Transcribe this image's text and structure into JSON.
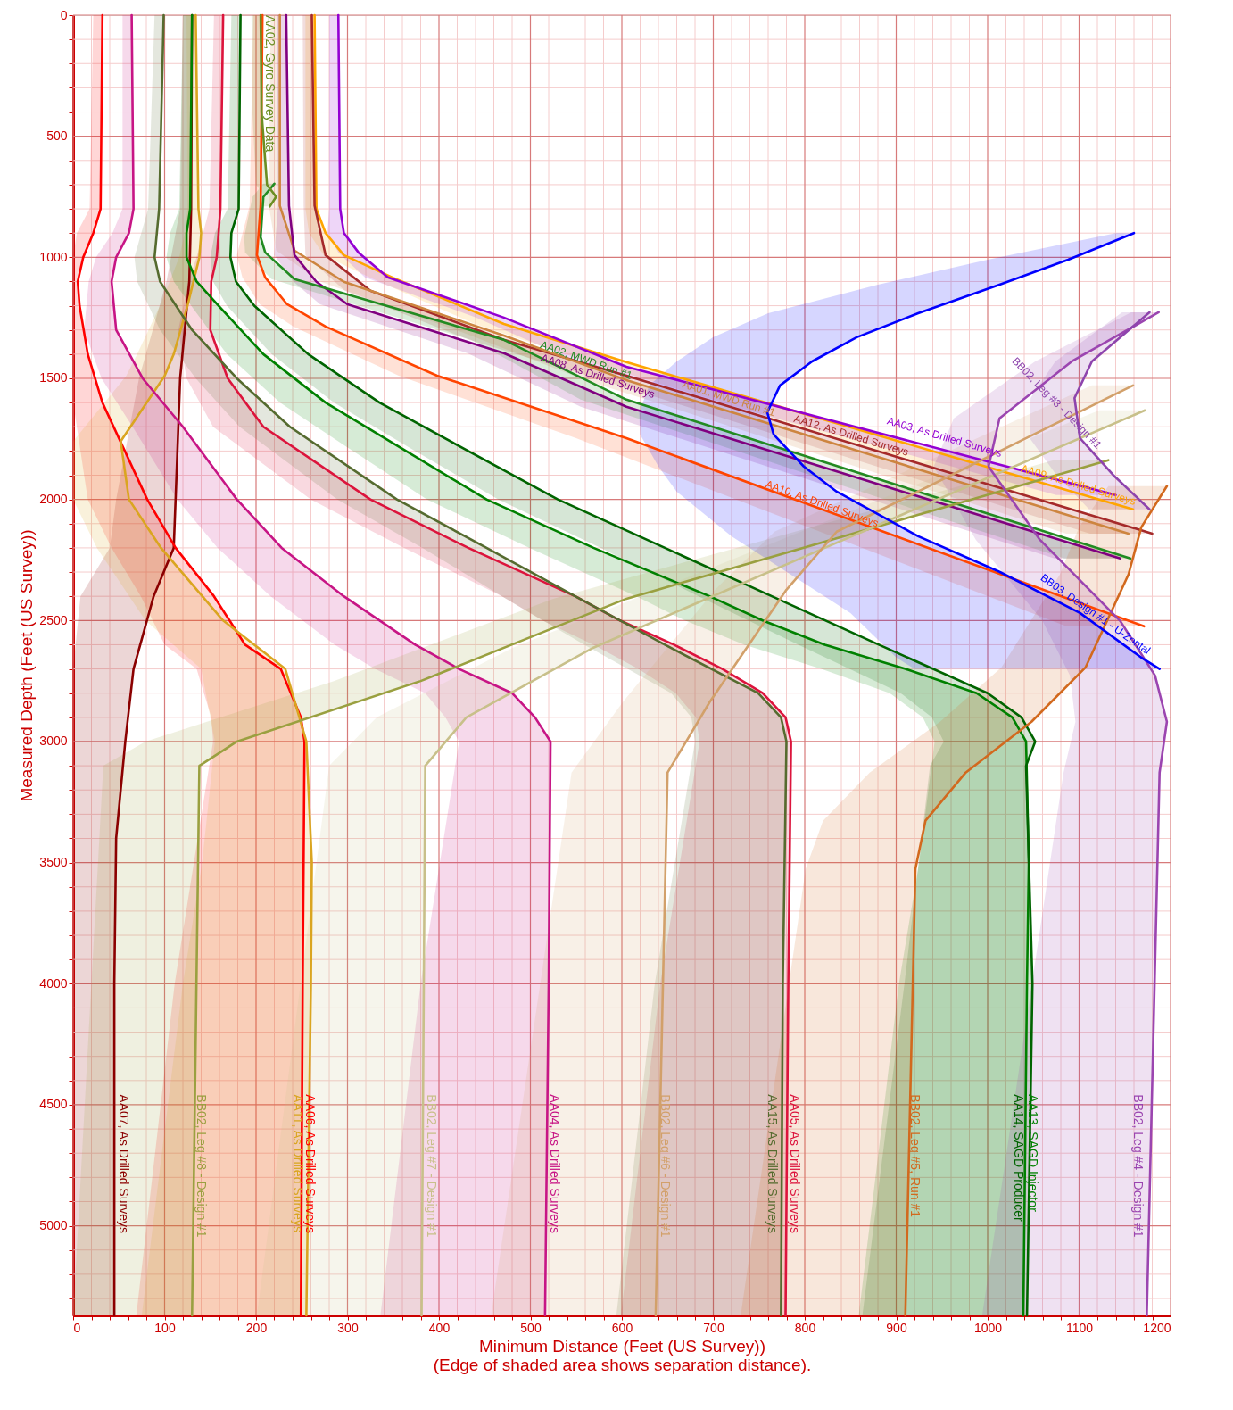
{
  "chart_data": {
    "type": "line",
    "orientation": "horizontal",
    "xlabel": "Minimum Distance (Feet (US Survey))",
    "ylabel": "Measured Depth (Feet (US Survey))",
    "annotations": [
      "(Edge of shaded area shows separation distance)."
    ],
    "xlim": [
      0,
      1200
    ],
    "ylim": [
      5370,
      0
    ],
    "xticks": [
      0,
      {
        "value": 20,
        "label": null
      },
      {
        "value": 40,
        "label": null
      },
      {
        "value": 60,
        "label": null
      },
      {
        "value": 80,
        "label": null
      },
      100,
      {
        "value": 120,
        "label": null
      },
      {
        "value": 140,
        "label": null
      },
      {
        "value": 160,
        "label": null
      },
      {
        "value": 180,
        "label": null
      },
      200,
      {
        "value": 220,
        "label": null
      },
      {
        "value": 240,
        "label": null
      },
      {
        "value": 260,
        "label": null
      },
      {
        "value": 280,
        "label": null
      },
      300,
      {
        "value": 320,
        "label": null
      },
      {
        "value": 340,
        "label": null
      },
      {
        "value": 360,
        "label": null
      },
      {
        "value": 380,
        "label": null
      },
      400,
      {
        "value": 420,
        "label": null
      },
      {
        "value": 440,
        "label": null
      },
      {
        "value": 460,
        "label": null
      },
      {
        "value": 480,
        "label": null
      },
      500,
      {
        "value": 520,
        "label": null
      },
      {
        "value": 540,
        "label": null
      },
      {
        "value": 560,
        "label": null
      },
      {
        "value": 580,
        "label": null
      },
      600,
      {
        "value": 620,
        "label": null
      },
      {
        "value": 640,
        "label": null
      },
      {
        "value": 660,
        "label": null
      },
      {
        "value": 680,
        "label": null
      },
      700,
      {
        "value": 720,
        "label": null
      },
      {
        "value": 740,
        "label": null
      },
      {
        "value": 760,
        "label": null
      },
      {
        "value": 780,
        "label": null
      },
      800,
      {
        "value": 820,
        "label": null
      },
      {
        "value": 840,
        "label": null
      },
      {
        "value": 860,
        "label": null
      },
      {
        "value": 880,
        "label": null
      },
      900,
      {
        "value": 920,
        "label": null
      },
      {
        "value": 940,
        "label": null
      },
      {
        "value": 960,
        "label": null
      },
      {
        "value": 980,
        "label": null
      },
      1000,
      {
        "value": 1020,
        "label": null
      },
      {
        "value": 1040,
        "label": null
      },
      {
        "value": 1060,
        "label": null
      },
      {
        "value": 1080,
        "label": null
      },
      1100,
      {
        "value": 1120,
        "label": null
      },
      {
        "value": 1140,
        "label": null
      },
      {
        "value": 1160,
        "label": null
      },
      {
        "value": 1180,
        "label": null
      },
      1200
    ],
    "yticks": [
      0,
      {
        "value": 100,
        "label": null
      },
      {
        "value": 200,
        "label": null
      },
      {
        "value": 300,
        "label": null
      },
      {
        "value": 400,
        "label": null
      },
      500,
      {
        "value": 600,
        "label": null
      },
      {
        "value": 700,
        "label": null
      },
      {
        "value": 800,
        "label": null
      },
      {
        "value": 900,
        "label": null
      },
      1000,
      {
        "value": 1100,
        "label": null
      },
      {
        "value": 1200,
        "label": null
      },
      {
        "value": 1300,
        "label": null
      },
      {
        "value": 1400,
        "label": null
      },
      1500,
      {
        "value": 1600,
        "label": null
      },
      {
        "value": 1700,
        "label": null
      },
      {
        "value": 1800,
        "label": null
      },
      {
        "value": 1900,
        "label": null
      },
      2000,
      {
        "value": 2100,
        "label": null
      },
      {
        "value": 2200,
        "label": null
      },
      {
        "value": 2300,
        "label": null
      },
      {
        "value": 2400,
        "label": null
      },
      2500,
      {
        "value": 2600,
        "label": null
      },
      {
        "value": 2700,
        "label": null
      },
      {
        "value": 2800,
        "label": null
      },
      {
        "value": 2900,
        "label": null
      },
      3000,
      {
        "value": 3100,
        "label": null
      },
      {
        "value": 3200,
        "label": null
      },
      {
        "value": 3300,
        "label": null
      },
      {
        "value": 3400,
        "label": null
      },
      3500,
      {
        "value": 3600,
        "label": null
      },
      {
        "value": 3700,
        "label": null
      },
      {
        "value": 3800,
        "label": null
      },
      {
        "value": 3900,
        "label": null
      },
      4000,
      {
        "value": 4100,
        "label": null
      },
      {
        "value": 4200,
        "label": null
      },
      {
        "value": 4300,
        "label": null
      },
      {
        "value": 4400,
        "label": null
      },
      4500,
      {
        "value": 4600,
        "label": null
      },
      {
        "value": 4700,
        "label": null
      },
      {
        "value": 4800,
        "label": null
      },
      {
        "value": 4900,
        "label": null
      },
      5000,
      {
        "value": 5100,
        "label": null
      },
      {
        "value": 5200,
        "label": null
      },
      {
        "value": 5300,
        "label": null
      }
    ],
    "grid": true,
    "legend": false,
    "marker": "none",
    "line_style": "solid",
    "series": [
      {
        "name": "AA07, As Drilled Surveys",
        "color": "#8b0000",
        "x": [
          0,
          800,
          1100,
          1500,
          2000,
          2200,
          2400,
          2700,
          3000,
          3400,
          4000,
          5370
        ],
        "values": [
          130,
          129,
          127,
          117,
          112,
          110,
          88,
          66,
          57,
          47,
          45,
          45
        ],
        "lower": [
          120,
          117,
          102,
          72,
          47,
          40,
          8,
          0,
          0,
          0,
          0,
          0
        ],
        "upper": [
          130,
          129,
          127,
          117,
          112,
          110,
          88,
          66,
          57,
          47,
          45,
          45
        ]
      },
      {
        "name": "AA06, As Drilled Surveys",
        "color": "#ff0000",
        "x": [
          0,
          800,
          900,
          1000,
          1100,
          1200,
          1400,
          1600,
          2000,
          2200,
          2400,
          2600,
          2700,
          2900,
          3000,
          4000,
          5370
        ],
        "values": [
          32,
          30,
          22,
          11,
          5,
          7,
          16,
          32,
          81,
          112,
          154,
          188,
          227,
          249,
          253,
          251,
          249
        ],
        "lower": [
          22,
          18,
          4,
          0,
          0,
          0,
          0,
          0,
          16,
          42,
          74,
          100,
          135,
          151,
          153,
          111,
          69
        ],
        "upper": [
          32,
          30,
          22,
          11,
          5,
          7,
          16,
          32,
          81,
          112,
          154,
          188,
          227,
          249,
          253,
          251,
          249
        ]
      },
      {
        "name": "AA11, As Drilled Surveys",
        "color": "#daa520",
        "x": [
          0,
          800,
          900,
          1000,
          1200,
          1400,
          1490,
          1760,
          2000,
          2200,
          2500,
          2700,
          3000,
          3500,
          4000,
          5370
        ],
        "values": [
          134,
          137,
          140,
          138,
          125,
          110,
          100,
          52,
          61,
          96,
          164,
          232,
          255,
          261,
          260,
          255
        ],
        "lower": [
          124,
          125,
          122,
          116,
          95,
          70,
          58,
          0,
          0,
          26,
          79,
          140,
          155,
          141,
          120,
          75
        ],
        "upper": [
          134,
          137,
          140,
          138,
          125,
          110,
          100,
          52,
          61,
          96,
          164,
          232,
          255,
          261,
          260,
          255
        ]
      },
      {
        "name": "AA04, As Drilled Surveys",
        "color": "#c71585",
        "x": [
          0,
          800,
          900,
          1000,
          1100,
          1300,
          1500,
          1700,
          2000,
          2200,
          2400,
          2600,
          2700,
          2800,
          2900,
          3000,
          4000,
          5370
        ],
        "values": [
          64,
          66,
          61,
          47,
          42,
          47,
          76,
          120,
          179,
          228,
          296,
          374,
          422,
          480,
          505,
          522,
          520,
          516
        ],
        "lower": [
          54,
          54,
          43,
          25,
          17,
          12,
          31,
          65,
          114,
          158,
          216,
          286,
          330,
          385,
          407,
          422,
          380,
          336
        ],
        "upper": [
          64,
          66,
          61,
          47,
          42,
          47,
          76,
          120,
          179,
          228,
          296,
          374,
          422,
          480,
          505,
          522,
          520,
          516
        ]
      },
      {
        "name": "AA05, As Drilled Surveys",
        "color": "#dc143c",
        "x": [
          0,
          800,
          1000,
          1100,
          1300,
          1500,
          1700,
          2000,
          2200,
          2400,
          2500,
          2600,
          2700,
          2800,
          2900,
          3000,
          4000,
          5370
        ],
        "values": [
          164,
          161,
          157,
          151,
          150,
          169,
          208,
          325,
          432,
          549,
          598,
          657,
          710,
          754,
          779,
          785,
          782,
          779
        ],
        "lower": [
          154,
          149,
          135,
          126,
          115,
          124,
          153,
          260,
          362,
          469,
          513,
          569,
          618,
          659,
          681,
          685,
          642,
          599
        ],
        "upper": [
          164,
          161,
          157,
          151,
          150,
          169,
          208,
          325,
          432,
          549,
          598,
          657,
          710,
          754,
          779,
          785,
          782,
          779
        ]
      },
      {
        "name": "AA15, As Drilled Surveys",
        "color": "#556b2f",
        "x": [
          0,
          800,
          1000,
          1100,
          1300,
          1500,
          1700,
          2000,
          2200,
          2400,
          2600,
          2800,
          2900,
          3000,
          4000,
          5370
        ],
        "values": [
          99,
          94,
          89,
          95,
          130,
          179,
          237,
          354,
          452,
          549,
          647,
          749,
          774,
          780,
          776,
          774
        ],
        "lower": [
          89,
          82,
          67,
          70,
          95,
          134,
          182,
          289,
          382,
          469,
          559,
          654,
          676,
          680,
          636,
          594
        ],
        "upper": [
          99,
          94,
          89,
          95,
          130,
          179,
          237,
          354,
          452,
          549,
          647,
          749,
          774,
          780,
          776,
          774
        ]
      },
      {
        "name": "AA13, SAGD Injector",
        "color": "#008000",
        "x": [
          0,
          800,
          900,
          1000,
          1100,
          1200,
          1400,
          1600,
          1800,
          2000,
          2200,
          2400,
          2500,
          2600,
          2700,
          2800,
          2900,
          3000,
          3500,
          4000,
          5370
        ],
        "values": [
          130,
          128,
          124,
          124,
          135,
          159,
          208,
          276,
          364,
          452,
          569,
          696,
          754,
          822,
          910,
          988,
          1027,
          1042,
          1045,
          1043,
          1039
        ],
        "lower": [
          120,
          116,
          106,
          102,
          110,
          129,
          168,
          226,
          306,
          387,
          499,
          616,
          669,
          734,
          818,
          893,
          929,
          942,
          925,
          903,
          859
        ],
        "upper": [
          130,
          128,
          124,
          124,
          135,
          159,
          208,
          276,
          364,
          452,
          569,
          696,
          754,
          822,
          910,
          988,
          1027,
          1042,
          1045,
          1043,
          1039
        ]
      },
      {
        "name": "AA14, SAGD Producer",
        "color": "#006400",
        "x": [
          0,
          800,
          900,
          1000,
          1100,
          1200,
          1400,
          1600,
          1800,
          2000,
          2200,
          2400,
          2600,
          2800,
          2900,
          3000,
          3100,
          4000,
          5370
        ],
        "values": [
          183,
          181,
          173,
          172,
          178,
          198,
          257,
          335,
          432,
          530,
          647,
          764,
          881,
          1000,
          1037,
          1052,
          1042,
          1049,
          1043
        ],
        "lower": [
          173,
          169,
          155,
          150,
          153,
          168,
          217,
          285,
          374,
          465,
          577,
          684,
          793,
          905,
          939,
          952,
          937,
          909,
          863
        ],
        "upper": [
          183,
          181,
          173,
          172,
          178,
          198,
          257,
          335,
          432,
          530,
          647,
          764,
          881,
          1000,
          1037,
          1052,
          1042,
          1049,
          1043
        ]
      },
      {
        "name": "AA09, As Drilled Surveys",
        "color": "#ffa500",
        "x": [
          0,
          800,
          900,
          991,
          1083,
          1275,
          1433,
          2041
        ],
        "values": [
          264,
          266,
          276,
          296,
          349,
          471,
          605,
          1159
        ],
        "lower": [
          254,
          254,
          258,
          274,
          324,
          439,
          565,
          1093
        ],
        "upper": [
          264,
          266,
          276,
          296,
          349,
          471,
          605,
          1159
        ]
      },
      {
        "name": "AA03, As Drilled Surveys",
        "color": "#9400d3",
        "x": [
          0,
          800,
          899,
          980,
          1083,
          1249,
          1452,
          1982
        ],
        "values": [
          290,
          292,
          296,
          312,
          344,
          471,
          605,
          1140
        ],
        "lower": [
          280,
          280,
          278,
          290,
          319,
          441,
          563,
          1075
        ],
        "upper": [
          290,
          292,
          296,
          312,
          344,
          471,
          605,
          1140
        ]
      },
      {
        "name": "AA12, As Drilled Surveys",
        "color": "#a52a2a",
        "x": [
          0,
          787,
          991,
          1138,
          1341,
          1489,
          2141
        ],
        "values": [
          261,
          264,
          276,
          325,
          471,
          605,
          1180
        ],
        "lower": [
          251,
          252,
          254,
          297,
          433,
          563,
          1112
        ],
        "upper": [
          261,
          264,
          276,
          325,
          471,
          605,
          1180
        ]
      },
      {
        "name": "AA01, MWD Run #1",
        "color": "#cd853f",
        "x": [
          0,
          787,
          972,
          1101,
          1323,
          1507,
          2141
        ],
        "values": [
          226,
          226,
          242,
          296,
          471,
          605,
          1154
        ],
        "lower": [
          216,
          214,
          222,
          271,
          435,
          560,
          1086
        ],
        "upper": [
          226,
          226,
          242,
          296,
          471,
          605,
          1154
        ]
      },
      {
        "name": "AA08, As Drilled Surveys",
        "color": "#800080",
        "x": [
          0,
          787,
          991,
          1101,
          1194,
          1396,
          1617,
          2244
        ],
        "values": [
          233,
          236,
          242,
          266,
          300,
          471,
          605,
          1145
        ],
        "lower": [
          223,
          224,
          220,
          241,
          270,
          431,
          555,
          1073
        ],
        "upper": [
          233,
          236,
          242,
          266,
          300,
          471,
          605,
          1145
        ]
      },
      {
        "name": "AA02, MWD Run #1",
        "color": "#228b22",
        "x": [
          696,
          751,
          917,
          980,
          1090,
          1341,
          1588,
          2244
        ],
        "values": [
          220,
          208,
          205,
          210,
          242,
          471,
          605,
          1156
        ],
        "lower": [
          208,
          196,
          187,
          188,
          217,
          435,
          555,
          1084
        ],
        "upper": [
          220,
          208,
          205,
          210,
          242,
          471,
          605,
          1156
        ]
      },
      {
        "name": "AA10, As Drilled Surveys",
        "color": "#ff4500",
        "x": [
          0,
          787,
          991,
          1083,
          1194,
          1286,
          1489,
          1747,
          2524
        ],
        "values": [
          207,
          205,
          201,
          210,
          234,
          276,
          398,
          605,
          1171
        ],
        "lower": [
          197,
          193,
          179,
          185,
          204,
          241,
          356,
          550,
          1086
        ],
        "upper": [
          207,
          205,
          201,
          210,
          234,
          276,
          398,
          605,
          1171
        ]
      },
      {
        "name": "AA02, Gyro Survey Data",
        "color": "#6b8e23",
        "x": [
          0,
          400,
          700,
          750,
          790
        ],
        "values": [
          205,
          206,
          212,
          222,
          215
        ],
        "lower": [
          195,
          196,
          200,
          210,
          203
        ],
        "upper": [
          205,
          206,
          212,
          222,
          215
        ]
      },
      {
        "name": "BB02, Leg #8 - Design #1",
        "color": "#9aa040",
        "x": [
          1838,
          2410,
          2750,
          3000,
          3100,
          5370
        ],
        "values": [
          1132,
          605,
          380,
          179,
          138,
          130
        ],
        "lower": [
          1072,
          525,
          285,
          79,
          33,
          0
        ],
        "upper": [
          1132,
          605,
          380,
          179,
          138,
          130
        ]
      },
      {
        "name": "BB02, Leg #7 - Design #1",
        "color": "#c8c08a",
        "x": [
          1632,
          2200,
          2612,
          2900,
          3100,
          5370
        ],
        "values": [
          1172,
          822,
          569,
          430,
          385,
          381
        ],
        "lower": [
          1122,
          752,
          481,
          332,
          280,
          201
        ],
        "upper": [
          1172,
          822,
          569,
          430,
          385,
          381
        ]
      },
      {
        "name": "BB02, Leg #6 - Design #1",
        "color": "#d2a06a",
        "x": [
          1529,
          2133,
          2373,
          2837,
          3128,
          5370
        ],
        "values": [
          1159,
          835,
          780,
          696,
          650,
          637
        ],
        "lower": [
          1114,
          767,
          702,
          601,
          545,
          457
        ],
        "upper": [
          1159,
          835,
          780,
          696,
          650,
          637
        ]
      },
      {
        "name": "BB02, Leg #5, Run #1",
        "color": "#d2691e",
        "x": [
          1945,
          2115,
          2310,
          2694,
          2918,
          3128,
          3327,
          3526,
          5370
        ],
        "values": [
          1196,
          1168,
          1154,
          1107,
          1048,
          976,
          932,
          921,
          910
        ],
        "lower": [
          1132,
          1100,
          1079,
          1015,
          948,
          871,
          820,
          801,
          730
        ],
        "upper": [
          1196,
          1168,
          1154,
          1107,
          1048,
          976,
          932,
          921,
          910
        ]
      },
      {
        "name": "BB02, Leg #4 - Design #1",
        "color": "#9b45b0",
        "x": [
          1227,
          1430,
          1665,
          1864,
          2166,
          2502,
          2727,
          2918,
          3128,
          5370
        ],
        "values": [
          1187,
          1092,
          1013,
          1001,
          1057,
          1145,
          1183,
          1196,
          1188,
          1174
        ],
        "lower": [
          1157,
          1052,
          963,
          941,
          987,
          1060,
          1090,
          1096,
          1083,
          994
        ],
        "upper": [
          1187,
          1092,
          1013,
          1001,
          1057,
          1145,
          1183,
          1196,
          1188,
          1174
        ]
      },
      {
        "name": "BB02, Leg #3 - Design #1",
        "color": "#8e44ad",
        "x": [
          1227,
          1430,
          1581,
          1747,
          1898,
          2041
        ],
        "values": [
          1177,
          1114,
          1095,
          1101,
          1137,
          1177
        ],
        "lower": [
          1147,
          1074,
          1047,
          1046,
          1075,
          1111
        ],
        "upper": [
          1177,
          1114,
          1095,
          1101,
          1137,
          1177
        ]
      },
      {
        "name": "BB03, Design #1 - U-Zontal",
        "color": "#0000ff",
        "x": [
          900,
          1010,
          1113,
          1231,
          1330,
          1430,
          1529,
          1640,
          1732,
          1864,
          1968,
          2152,
          2299,
          2469,
          2653,
          2700
        ],
        "values": [
          1160,
          1088,
          1013,
          924,
          857,
          808,
          773,
          759,
          766,
          799,
          835,
          924,
          1013,
          1101,
          1168,
          1188
        ],
        "lower": [
          1140,
          1000,
          880,
          760,
          700,
          660,
          630,
          619,
          620,
          640,
          660,
          720,
          780,
          850,
          900,
          920
        ],
        "upper": [
          1160,
          1088,
          1013,
          924,
          857,
          808,
          773,
          759,
          766,
          799,
          835,
          924,
          1013,
          1101,
          1168,
          1188
        ]
      }
    ]
  }
}
